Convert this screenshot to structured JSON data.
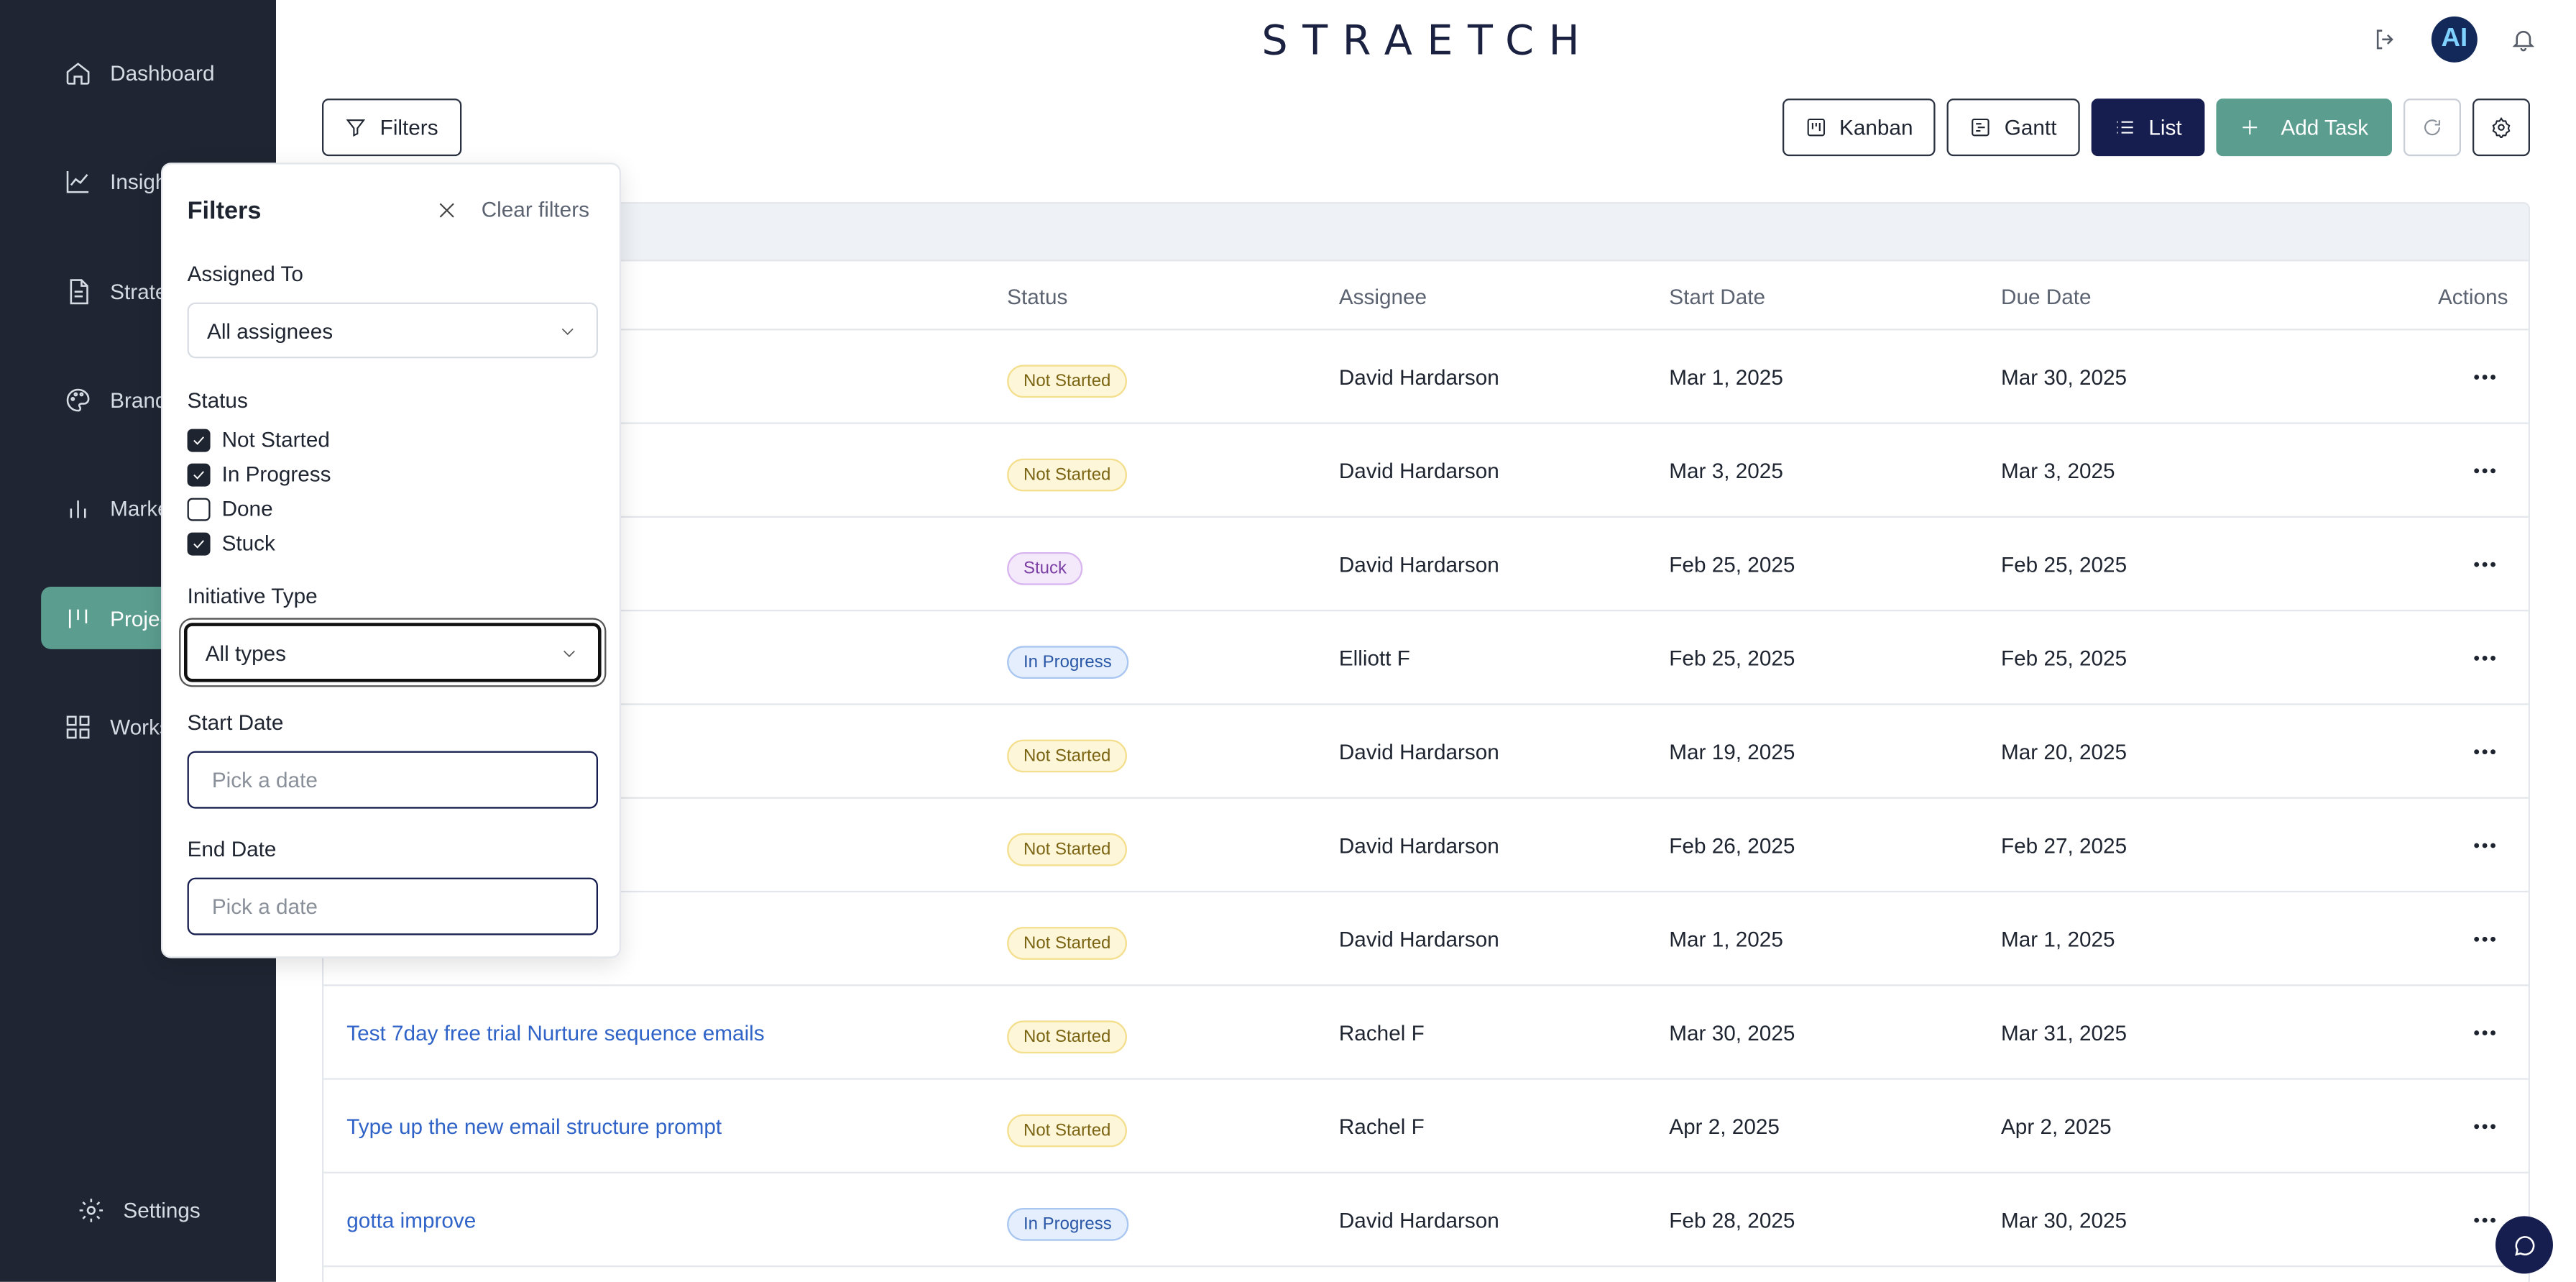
{
  "app": {
    "logo": "STRAETCH",
    "avatar_initials": "AI"
  },
  "sidebar": {
    "items": [
      {
        "label": "Dashboard",
        "icon": "home-icon"
      },
      {
        "label": "Insights",
        "icon": "line-chart-icon"
      },
      {
        "label": "Strategy",
        "icon": "document-icon"
      },
      {
        "label": "Brand",
        "icon": "palette-icon"
      },
      {
        "label": "Marketing",
        "icon": "bar-chart-icon"
      },
      {
        "label": "Projects",
        "icon": "kanban-icon",
        "active": true
      },
      {
        "label": "Workspace",
        "icon": "grid-icon"
      }
    ],
    "settings_label": "Settings"
  },
  "toolbar": {
    "filters_label": "Filters",
    "kanban_label": "Kanban",
    "gantt_label": "Gantt",
    "list_label": "List",
    "add_task_label": "Add Task"
  },
  "table": {
    "columns": [
      "Status",
      "Assignee",
      "Start Date",
      "Due Date",
      "Actions"
    ],
    "rows": [
      {
        "task": "",
        "status": "Not Started",
        "assignee": "David Hardarson",
        "start": "Mar 1, 2025",
        "due": "Mar 30, 2025"
      },
      {
        "task": "",
        "status": "Not Started",
        "assignee": "David Hardarson",
        "start": "Mar 3, 2025",
        "due": "Mar 3, 2025"
      },
      {
        "task": "",
        "status": "Stuck",
        "assignee": "David Hardarson",
        "start": "Feb 25, 2025",
        "due": "Feb 25, 2025"
      },
      {
        "task": "",
        "status": "In Progress",
        "assignee": "Elliott F",
        "start": "Feb 25, 2025",
        "due": "Feb 25, 2025"
      },
      {
        "task": "",
        "status": "Not Started",
        "assignee": "David Hardarson",
        "start": "Mar 19, 2025",
        "due": "Mar 20, 2025"
      },
      {
        "task": "",
        "status": "Not Started",
        "assignee": "David Hardarson",
        "start": "Feb 26, 2025",
        "due": "Feb 27, 2025"
      },
      {
        "task": "",
        "status": "Not Started",
        "assignee": "David Hardarson",
        "start": "Mar 1, 2025",
        "due": "Mar 1, 2025"
      },
      {
        "task": "Test 7day free trial Nurture sequence emails",
        "status": "Not Started",
        "assignee": "Rachel F",
        "start": "Mar 30, 2025",
        "due": "Mar 31, 2025"
      },
      {
        "task": "Type up the new email structure prompt",
        "status": "Not Started",
        "assignee": "Rachel F",
        "start": "Apr 2, 2025",
        "due": "Apr 2, 2025"
      },
      {
        "task": "gotta improve",
        "status": "In Progress",
        "assignee": "David Hardarson",
        "start": "Feb 28, 2025",
        "due": "Mar 30, 2025"
      }
    ]
  },
  "filters": {
    "title": "Filters",
    "clear_label": "Clear filters",
    "assigned_to_label": "Assigned To",
    "assigned_to_value": "All assignees",
    "status_label": "Status",
    "status_options": [
      {
        "label": "Not Started",
        "checked": true
      },
      {
        "label": "In Progress",
        "checked": true
      },
      {
        "label": "Done",
        "checked": false
      },
      {
        "label": "Stuck",
        "checked": true
      }
    ],
    "initiative_type_label": "Initiative Type",
    "initiative_type_value": "All types",
    "start_date_label": "Start Date",
    "start_date_placeholder": "Pick a date",
    "end_date_label": "End Date",
    "end_date_placeholder": "Pick a date"
  },
  "colors": {
    "sidebar_bg": "#1f2532",
    "accent_green": "#5b9e8f",
    "primary_navy": "#161d4f",
    "link_blue": "#2f63c7"
  }
}
